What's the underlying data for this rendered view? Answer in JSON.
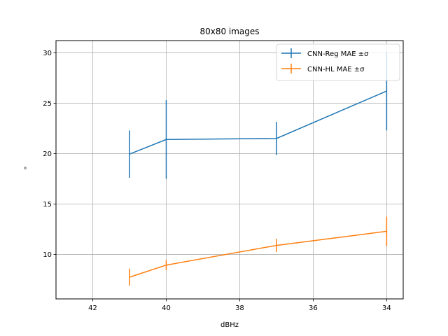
{
  "chart_data": {
    "type": "line",
    "title": "80x80 images",
    "xlabel": "dBHz",
    "ylabel": "°",
    "x": [
      41,
      40,
      37,
      34
    ],
    "xlim": [
      43,
      33.55
    ],
    "ylim": [
      5.6,
      31.2
    ],
    "x_ticks": [
      42,
      40,
      38,
      36,
      34
    ],
    "y_ticks": [
      10,
      15,
      20,
      25,
      30
    ],
    "grid": true,
    "legend_position": "upper-right",
    "series": [
      {
        "name": "CNN-Reg MAE ±σ",
        "color": "#1f77b4",
        "values": [
          19.95,
          21.4,
          21.5,
          26.2
        ],
        "error": [
          2.35,
          3.9,
          1.65,
          3.9
        ]
      },
      {
        "name": "CNN-HL MAE ±σ",
        "color": "#ff7f0e",
        "values": [
          7.75,
          8.95,
          10.9,
          12.3
        ],
        "error": [
          0.85,
          0.5,
          0.65,
          1.45
        ]
      }
    ]
  }
}
